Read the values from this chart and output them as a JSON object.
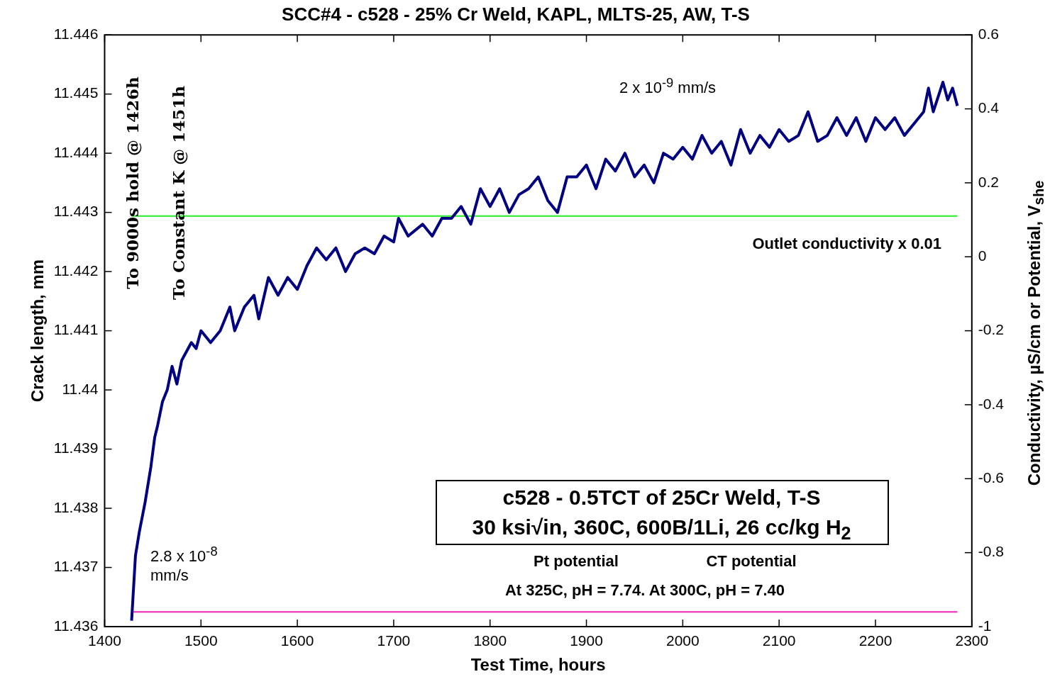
{
  "chart_data": {
    "type": "line",
    "title": "SCC#4 - c528 - 25% Cr Weld, KAPL, MLTS-25, AW, T-S",
    "xlabel": "Test Time, hours",
    "ylabel": "Crack length, mm",
    "y2label": "Conductivity, µS/cm or Potential, V$_{she}$",
    "xlim": [
      1400,
      2300
    ],
    "xticks": [
      1400,
      1500,
      1600,
      1700,
      1800,
      1900,
      2000,
      2100,
      2200,
      2300
    ],
    "ylim": [
      11.436,
      11.446
    ],
    "yticks": [
      11.436,
      11.437,
      11.438,
      11.439,
      11.44,
      11.441,
      11.442,
      11.443,
      11.444,
      11.445,
      11.446
    ],
    "y2lim": [
      -1,
      0.6
    ],
    "y2ticks": [
      -1,
      -0.8,
      -0.6,
      -0.4,
      -0.2,
      0,
      0.2,
      0.4,
      0.6
    ],
    "grid": false,
    "legend": false,
    "marker": "none",
    "line_style": "solid",
    "series": [
      {
        "color": "#000080",
        "x": [
          1428,
          1432,
          1436,
          1442,
          1448,
          1452,
          1455,
          1460,
          1465,
          1470,
          1475,
          1480,
          1490,
          1495,
          1500,
          1510,
          1520,
          1530,
          1535,
          1545,
          1555,
          1560,
          1570,
          1580,
          1590,
          1600,
          1610,
          1620,
          1630,
          1640,
          1650,
          1660,
          1670,
          1680,
          1690,
          1700,
          1705,
          1715,
          1730,
          1740,
          1750,
          1760,
          1770,
          1780,
          1790,
          1800,
          1810,
          1820,
          1830,
          1840,
          1850,
          1860,
          1870,
          1880,
          1890,
          1900,
          1910,
          1920,
          1930,
          1940,
          1950,
          1960,
          1970,
          1980,
          1990,
          2000,
          2010,
          2020,
          2030,
          2040,
          2050,
          2060,
          2070,
          2080,
          2090,
          2100,
          2110,
          2120,
          2130,
          2140,
          2150,
          2160,
          2170,
          2180,
          2190,
          2200,
          2210,
          2220,
          2230,
          2240,
          2250,
          2255,
          2260,
          2270,
          2275,
          2280,
          2285
        ],
        "values": [
          11.4361,
          11.4372,
          11.4376,
          11.4381,
          11.4387,
          11.4392,
          11.4394,
          11.4398,
          11.44,
          11.4404,
          11.4401,
          11.4405,
          11.4408,
          11.4407,
          11.441,
          11.4408,
          11.441,
          11.4414,
          11.441,
          11.4414,
          11.4416,
          11.4412,
          11.4419,
          11.4416,
          11.4419,
          11.4417,
          11.4421,
          11.4424,
          11.4422,
          11.4424,
          11.442,
          11.4423,
          11.4424,
          11.4423,
          11.4426,
          11.4425,
          11.4429,
          11.4426,
          11.4428,
          11.4426,
          11.4429,
          11.4429,
          11.4431,
          11.4428,
          11.4434,
          11.4431,
          11.4434,
          11.443,
          11.4433,
          11.4434,
          11.4436,
          11.4432,
          11.443,
          11.4436,
          11.4436,
          11.4438,
          11.4434,
          11.4439,
          11.4437,
          11.444,
          11.4436,
          11.4438,
          11.4435,
          11.444,
          11.4439,
          11.4441,
          11.4439,
          11.4443,
          11.444,
          11.4442,
          11.4438,
          11.4444,
          11.444,
          11.4443,
          11.4441,
          11.4444,
          11.4442,
          11.4443,
          11.4447,
          11.4442,
          11.4443,
          11.4446,
          11.4443,
          11.4446,
          11.4442,
          11.4446,
          11.4444,
          11.4446,
          11.4443,
          11.4445,
          11.4447,
          11.4451,
          11.4447,
          11.4452,
          11.4449,
          11.4451,
          11.4448
        ]
      },
      {
        "color": "#22ee22",
        "axis": "y2",
        "x": [
          1428,
          2285
        ],
        "values": [
          0.11,
          0.11
        ]
      },
      {
        "color": "#ee22bb",
        "axis": "y2",
        "x": [
          1428,
          2285
        ],
        "values": [
          -0.96,
          -0.96
        ]
      }
    ],
    "annotations": [
      "To 9000s hold @ 1426h",
      "To Constant K @ 1451h",
      "2 x 10$^{-9}$ mm/s",
      "2.8 x 10$^{-8}$ mm/s",
      "Outlet conductivity x 0.01",
      "c528 - 0.5TCT of 25Cr Weld, T-S",
      "30 ksi√in, 360C, 600B/1Li, 26 cc/kg H$_{2}$",
      "Pt potential",
      "CT potential",
      "At 325C, pH = 7.74.  At 300C, pH = 7.40"
    ]
  }
}
